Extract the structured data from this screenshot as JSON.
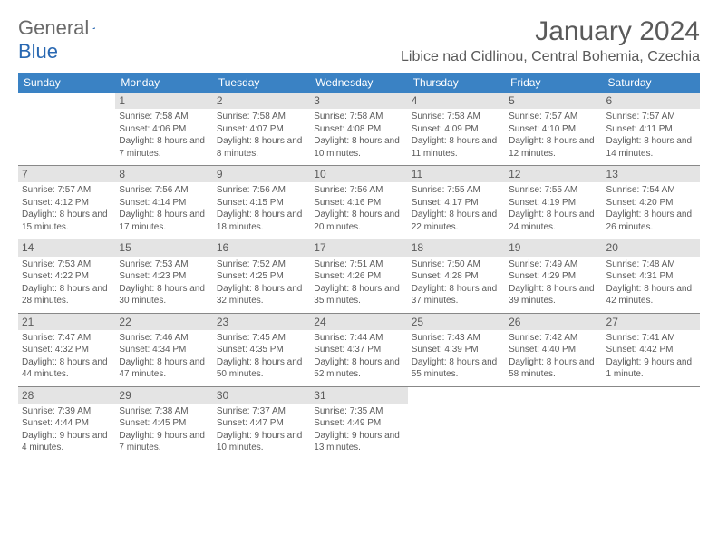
{
  "brand": {
    "word1": "General",
    "word2": "Blue"
  },
  "title": {
    "month": "January 2024",
    "location": "Libice nad Cidlinou, Central Bohemia, Czechia"
  },
  "colors": {
    "header_bg": "#3a82c4",
    "accent": "#2968b2",
    "daynum_bg": "#e4e4e4",
    "text": "#5a5a5a"
  },
  "days_of_week": [
    "Sunday",
    "Monday",
    "Tuesday",
    "Wednesday",
    "Thursday",
    "Friday",
    "Saturday"
  ],
  "weeks": [
    [
      null,
      {
        "n": "1",
        "sr": "Sunrise: 7:58 AM",
        "ss": "Sunset: 4:06 PM",
        "dl": "Daylight: 8 hours and 7 minutes."
      },
      {
        "n": "2",
        "sr": "Sunrise: 7:58 AM",
        "ss": "Sunset: 4:07 PM",
        "dl": "Daylight: 8 hours and 8 minutes."
      },
      {
        "n": "3",
        "sr": "Sunrise: 7:58 AM",
        "ss": "Sunset: 4:08 PM",
        "dl": "Daylight: 8 hours and 10 minutes."
      },
      {
        "n": "4",
        "sr": "Sunrise: 7:58 AM",
        "ss": "Sunset: 4:09 PM",
        "dl": "Daylight: 8 hours and 11 minutes."
      },
      {
        "n": "5",
        "sr": "Sunrise: 7:57 AM",
        "ss": "Sunset: 4:10 PM",
        "dl": "Daylight: 8 hours and 12 minutes."
      },
      {
        "n": "6",
        "sr": "Sunrise: 7:57 AM",
        "ss": "Sunset: 4:11 PM",
        "dl": "Daylight: 8 hours and 14 minutes."
      }
    ],
    [
      {
        "n": "7",
        "sr": "Sunrise: 7:57 AM",
        "ss": "Sunset: 4:12 PM",
        "dl": "Daylight: 8 hours and 15 minutes."
      },
      {
        "n": "8",
        "sr": "Sunrise: 7:56 AM",
        "ss": "Sunset: 4:14 PM",
        "dl": "Daylight: 8 hours and 17 minutes."
      },
      {
        "n": "9",
        "sr": "Sunrise: 7:56 AM",
        "ss": "Sunset: 4:15 PM",
        "dl": "Daylight: 8 hours and 18 minutes."
      },
      {
        "n": "10",
        "sr": "Sunrise: 7:56 AM",
        "ss": "Sunset: 4:16 PM",
        "dl": "Daylight: 8 hours and 20 minutes."
      },
      {
        "n": "11",
        "sr": "Sunrise: 7:55 AM",
        "ss": "Sunset: 4:17 PM",
        "dl": "Daylight: 8 hours and 22 minutes."
      },
      {
        "n": "12",
        "sr": "Sunrise: 7:55 AM",
        "ss": "Sunset: 4:19 PM",
        "dl": "Daylight: 8 hours and 24 minutes."
      },
      {
        "n": "13",
        "sr": "Sunrise: 7:54 AM",
        "ss": "Sunset: 4:20 PM",
        "dl": "Daylight: 8 hours and 26 minutes."
      }
    ],
    [
      {
        "n": "14",
        "sr": "Sunrise: 7:53 AM",
        "ss": "Sunset: 4:22 PM",
        "dl": "Daylight: 8 hours and 28 minutes."
      },
      {
        "n": "15",
        "sr": "Sunrise: 7:53 AM",
        "ss": "Sunset: 4:23 PM",
        "dl": "Daylight: 8 hours and 30 minutes."
      },
      {
        "n": "16",
        "sr": "Sunrise: 7:52 AM",
        "ss": "Sunset: 4:25 PM",
        "dl": "Daylight: 8 hours and 32 minutes."
      },
      {
        "n": "17",
        "sr": "Sunrise: 7:51 AM",
        "ss": "Sunset: 4:26 PM",
        "dl": "Daylight: 8 hours and 35 minutes."
      },
      {
        "n": "18",
        "sr": "Sunrise: 7:50 AM",
        "ss": "Sunset: 4:28 PM",
        "dl": "Daylight: 8 hours and 37 minutes."
      },
      {
        "n": "19",
        "sr": "Sunrise: 7:49 AM",
        "ss": "Sunset: 4:29 PM",
        "dl": "Daylight: 8 hours and 39 minutes."
      },
      {
        "n": "20",
        "sr": "Sunrise: 7:48 AM",
        "ss": "Sunset: 4:31 PM",
        "dl": "Daylight: 8 hours and 42 minutes."
      }
    ],
    [
      {
        "n": "21",
        "sr": "Sunrise: 7:47 AM",
        "ss": "Sunset: 4:32 PM",
        "dl": "Daylight: 8 hours and 44 minutes."
      },
      {
        "n": "22",
        "sr": "Sunrise: 7:46 AM",
        "ss": "Sunset: 4:34 PM",
        "dl": "Daylight: 8 hours and 47 minutes."
      },
      {
        "n": "23",
        "sr": "Sunrise: 7:45 AM",
        "ss": "Sunset: 4:35 PM",
        "dl": "Daylight: 8 hours and 50 minutes."
      },
      {
        "n": "24",
        "sr": "Sunrise: 7:44 AM",
        "ss": "Sunset: 4:37 PM",
        "dl": "Daylight: 8 hours and 52 minutes."
      },
      {
        "n": "25",
        "sr": "Sunrise: 7:43 AM",
        "ss": "Sunset: 4:39 PM",
        "dl": "Daylight: 8 hours and 55 minutes."
      },
      {
        "n": "26",
        "sr": "Sunrise: 7:42 AM",
        "ss": "Sunset: 4:40 PM",
        "dl": "Daylight: 8 hours and 58 minutes."
      },
      {
        "n": "27",
        "sr": "Sunrise: 7:41 AM",
        "ss": "Sunset: 4:42 PM",
        "dl": "Daylight: 9 hours and 1 minute."
      }
    ],
    [
      {
        "n": "28",
        "sr": "Sunrise: 7:39 AM",
        "ss": "Sunset: 4:44 PM",
        "dl": "Daylight: 9 hours and 4 minutes."
      },
      {
        "n": "29",
        "sr": "Sunrise: 7:38 AM",
        "ss": "Sunset: 4:45 PM",
        "dl": "Daylight: 9 hours and 7 minutes."
      },
      {
        "n": "30",
        "sr": "Sunrise: 7:37 AM",
        "ss": "Sunset: 4:47 PM",
        "dl": "Daylight: 9 hours and 10 minutes."
      },
      {
        "n": "31",
        "sr": "Sunrise: 7:35 AM",
        "ss": "Sunset: 4:49 PM",
        "dl": "Daylight: 9 hours and 13 minutes."
      },
      null,
      null,
      null
    ]
  ]
}
